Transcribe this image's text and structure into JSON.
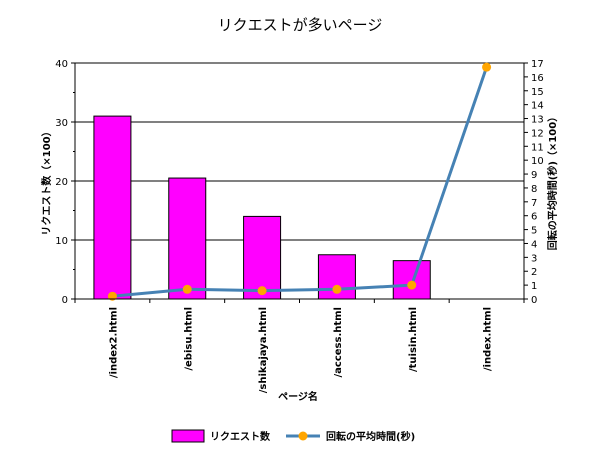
{
  "chart_data": {
    "type": "bar+line",
    "title": "リクエストが多いページ",
    "xlabel": "ページ名",
    "ylabel": "リクエスト数（×100）",
    "y2label": "回転の平均時間(秒)（×100）",
    "categories": [
      "/index2.html",
      "/ebisu.html",
      "/shikajaya.html",
      "/access.html",
      "/tuisin.html",
      "/index.html"
    ],
    "ylim": [
      0,
      40
    ],
    "y_ticks": [
      0,
      10,
      20,
      30,
      40
    ],
    "y2lim": [
      0,
      17
    ],
    "y2_ticks": [
      0,
      1,
      2,
      3,
      4,
      5,
      6,
      7,
      8,
      9,
      10,
      11,
      12,
      13,
      14,
      15,
      16,
      17
    ],
    "grid": true,
    "legend_position": "bottom",
    "series": [
      {
        "name": "リクエスト数",
        "type": "bar",
        "axis": "left",
        "color": "#ff00ff",
        "values": [
          31,
          20.5,
          14,
          7.5,
          6.5,
          0
        ]
      },
      {
        "name": "回転の平均時間(秒)",
        "type": "line",
        "axis": "right",
        "color": "#4682b4",
        "marker_color": "#ffa500",
        "values": [
          0.2,
          0.7,
          0.6,
          0.7,
          1.0,
          16.7
        ]
      }
    ]
  }
}
